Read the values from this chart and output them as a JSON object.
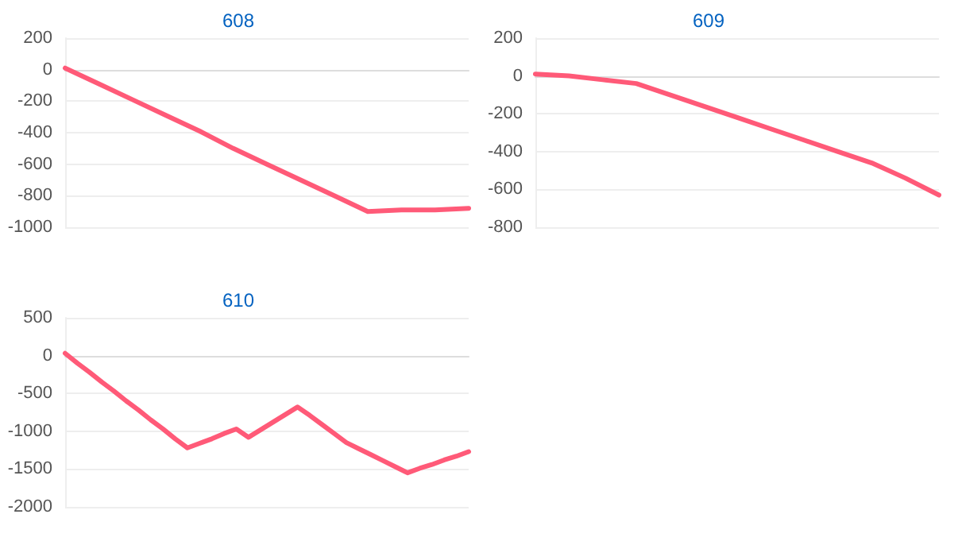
{
  "chart_data": [
    {
      "type": "line",
      "title": "608",
      "categories": [
        null,
        null,
        null,
        null,
        null,
        null,
        null,
        null,
        null,
        null,
        null,
        null,
        null
      ],
      "series": [
        {
          "color": "#ff5a78",
          "values": [
            10,
            -90,
            -190,
            -290,
            -390,
            -500,
            -600,
            -700,
            -800,
            -900,
            -890,
            -890,
            -880
          ]
        }
      ],
      "ylim": [
        -1000,
        200
      ],
      "yticks": [
        -1000,
        -800,
        -600,
        -400,
        -200,
        0,
        200
      ],
      "grid": "y",
      "marker": "none",
      "line_style": "solid"
    },
    {
      "type": "line",
      "title": "609",
      "categories": [
        null,
        null,
        null,
        null,
        null,
        null,
        null,
        null,
        null,
        null,
        null,
        null,
        null
      ],
      "series": [
        {
          "color": "#ff5a78",
          "values": [
            10,
            0,
            -20,
            -40,
            -100,
            -160,
            -220,
            -280,
            -340,
            -400,
            -460,
            -540,
            -630
          ]
        }
      ],
      "ylim": [
        -800,
        200
      ],
      "yticks": [
        -800,
        -600,
        -400,
        -200,
        0,
        200
      ],
      "grid": "y",
      "marker": "none",
      "line_style": "solid"
    },
    {
      "type": "line",
      "title": "610",
      "categories": [
        null,
        null,
        null,
        null,
        null,
        null,
        null,
        null,
        null,
        null,
        null,
        null,
        null,
        null,
        null,
        null,
        null,
        null,
        null,
        null,
        null,
        null,
        null,
        null,
        null,
        null,
        null,
        null,
        null,
        null,
        null,
        null,
        null,
        null
      ],
      "series": [
        {
          "color": "#ff5a78",
          "values": [
            30,
            -100,
            -220,
            -350,
            -470,
            -600,
            -720,
            -850,
            -970,
            -1100,
            -1220,
            -1160,
            -1100,
            -1030,
            -970,
            -1080,
            -980,
            -880,
            -780,
            -680,
            -790,
            -910,
            -1030,
            -1150,
            -1230,
            -1310,
            -1390,
            -1470,
            -1550,
            -1490,
            -1440,
            -1380,
            -1330,
            -1270
          ]
        }
      ],
      "ylim": [
        -2000,
        500
      ],
      "yticks": [
        -2000,
        -1500,
        -1000,
        -500,
        0,
        500
      ],
      "grid": "y",
      "marker": "none",
      "line_style": "solid"
    }
  ]
}
